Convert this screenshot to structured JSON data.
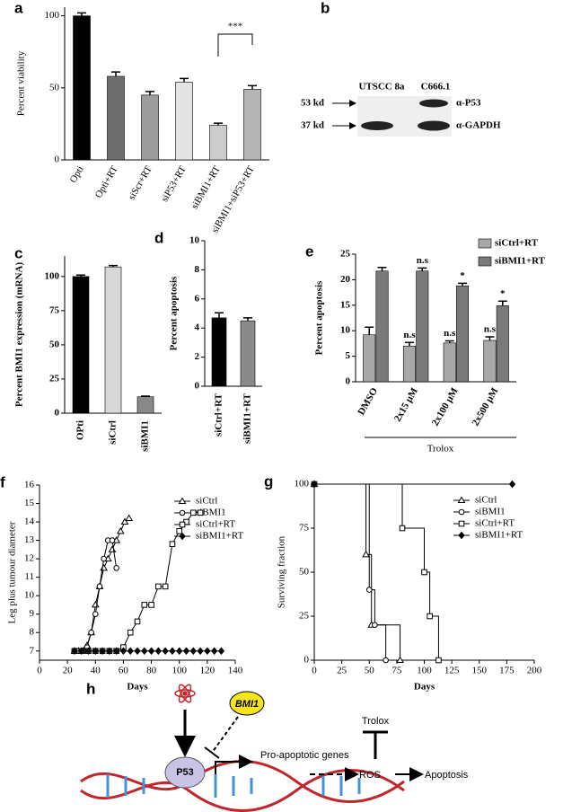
{
  "chart_data": [
    {
      "type": "bar",
      "label": "a",
      "ylabel": "Percent viability",
      "categories": [
        "Opti",
        "Opti+RT",
        "siScr+RT",
        "siP53+RT",
        "siBMI1+RT",
        "siBMI1+siP53+RT"
      ],
      "values": [
        100,
        58,
        45,
        54,
        24,
        49
      ],
      "errors": [
        2,
        3,
        2.5,
        2.5,
        1.5,
        2.5
      ],
      "colors": [
        "#000000",
        "#6e6e6e",
        "#9c9c9c",
        "#e4e4e4",
        "#cccccc",
        "#b4b4b4"
      ],
      "annotation": "***",
      "ylim": [
        0,
        106
      ],
      "yticks": [
        0,
        50,
        100
      ]
    },
    {
      "type": "bar",
      "label": "c",
      "ylabel": "Percent BMI1 expression (mRNA)",
      "categories": [
        "OPti",
        "siCtrl",
        "siBMI1"
      ],
      "values": [
        100,
        107,
        12
      ],
      "errors": [
        1,
        1,
        0.5
      ],
      "colors": [
        "#000000",
        "#d8d8d8",
        "#8a8a8a"
      ],
      "ylim": [
        0,
        115
      ],
      "yticks": [
        0,
        25,
        50,
        75,
        100
      ]
    },
    {
      "type": "bar",
      "label": "d",
      "ylabel": "Percent apoptosis",
      "categories": [
        "siCtrl+RT",
        "siBMI1+RT"
      ],
      "values": [
        4.7,
        4.5
      ],
      "errors": [
        0.35,
        0.2
      ],
      "colors": [
        "#000000",
        "#8a8a8a"
      ],
      "ylim": [
        0,
        10
      ],
      "yticks": [
        0,
        2,
        4,
        6,
        8,
        10
      ]
    },
    {
      "type": "grouped-bar",
      "label": "e",
      "ylabel": "Percent apoptosis",
      "xlabel": "Trolox",
      "categories": [
        "DMSO",
        "2x15 μM",
        "2x100 μM",
        "2x500 μM"
      ],
      "series": [
        {
          "name": "siCtrl+RT",
          "color": "#a8a8a8",
          "values": [
            9.2,
            7,
            7.6,
            8.1
          ],
          "errors": [
            1.5,
            0.7,
            0.4,
            0.7
          ],
          "annotations": [
            null,
            "n.s",
            "n.s",
            "n.s"
          ]
        },
        {
          "name": "siBMI1+RT",
          "color": "#7a7a7a",
          "values": [
            21.7,
            21.7,
            18.8,
            14.9
          ],
          "errors": [
            0.7,
            0.6,
            0.5,
            0.9
          ],
          "annotations": [
            null,
            "n.s",
            "*",
            "*"
          ]
        }
      ],
      "ylim": [
        0,
        25
      ],
      "yticks": [
        0,
        5,
        10,
        15,
        20,
        25
      ]
    },
    {
      "type": "line",
      "label": "f",
      "ylabel": "Leg plus tumour diameter",
      "xlabel": "Days",
      "series": [
        {
          "name": "siCtrl",
          "marker": "triangle",
          "x": [
            25,
            28,
            31,
            34,
            37,
            40,
            43,
            46,
            49,
            52,
            55,
            58,
            61,
            64
          ],
          "values": [
            7,
            7,
            7,
            7.3,
            8,
            9.5,
            10.5,
            11.5,
            12,
            12.5,
            13,
            13.5,
            14,
            14.2
          ]
        },
        {
          "name": "siBMI1",
          "marker": "circle",
          "x": [
            25,
            28,
            31,
            34,
            37,
            40,
            43,
            46,
            49,
            52,
            55
          ],
          "values": [
            7,
            7,
            7,
            7.2,
            8,
            9,
            10.5,
            12,
            13,
            13,
            11.5
          ]
        },
        {
          "name": "siCtrl+RT",
          "marker": "square",
          "x": [
            25,
            30,
            35,
            40,
            45,
            50,
            55,
            60,
            65,
            70,
            75,
            80,
            85,
            90,
            95,
            100,
            105,
            110,
            115
          ],
          "values": [
            7,
            7,
            7,
            7,
            7,
            7,
            7,
            7.2,
            8,
            8.6,
            9.5,
            9.5,
            10.5,
            10.5,
            12.8,
            13.5,
            14,
            14.5,
            14.5
          ]
        },
        {
          "name": "siBMI1+RT",
          "marker": "diamond",
          "x": [
            25,
            30,
            35,
            40,
            45,
            50,
            55,
            60,
            65,
            70,
            75,
            80,
            85,
            90,
            95,
            100,
            105,
            110,
            115,
            120,
            125,
            130
          ],
          "values": [
            7,
            7,
            7,
            7,
            7,
            7,
            7,
            7,
            7,
            7,
            7,
            7,
            7,
            7,
            7,
            7,
            7,
            7,
            7,
            7,
            7,
            7
          ]
        }
      ],
      "xlim": [
        0,
        140
      ],
      "xticks": [
        0,
        20,
        40,
        60,
        80,
        100,
        120,
        140
      ],
      "ylim": [
        6.5,
        16
      ],
      "yticks": [
        7,
        8,
        9,
        10,
        11,
        12,
        13,
        14,
        15,
        16
      ]
    },
    {
      "type": "step",
      "label": "g",
      "ylabel": "Surviving fraction",
      "xlabel": "Days",
      "series": [
        {
          "name": "siCtrl",
          "marker": "triangle",
          "x": [
            0,
            47,
            52,
            78
          ],
          "values": [
            100,
            60,
            20,
            0
          ]
        },
        {
          "name": "siBMI1",
          "marker": "circle",
          "x": [
            0,
            50,
            55,
            65
          ],
          "values": [
            100,
            40,
            20,
            0
          ]
        },
        {
          "name": "siCtrl+RT",
          "marker": "square",
          "x": [
            0,
            80,
            100,
            105,
            113
          ],
          "values": [
            100,
            75,
            50,
            25,
            0
          ]
        },
        {
          "name": "siBMI1+RT",
          "marker": "diamond",
          "x": [
            0,
            180
          ],
          "values": [
            100,
            100
          ]
        }
      ],
      "xlim": [
        0,
        200
      ],
      "xticks": [
        0,
        25,
        50,
        75,
        100,
        125,
        150,
        175,
        200
      ],
      "ylim": [
        0,
        100
      ],
      "yticks": [
        0,
        25,
        50,
        75,
        100
      ]
    }
  ],
  "blot": {
    "label": "b",
    "lanes": [
      "UTSCC 8a",
      "C666.1"
    ],
    "markers": [
      "53 kd",
      "37 kd"
    ],
    "antibodies": [
      "α-P53",
      "α-GAPDH"
    ]
  },
  "diagram": {
    "label": "h",
    "bmi1": "BMI1",
    "p53": "P53",
    "genes": "Pro-apoptotic genes",
    "ros": "ROS",
    "apoptosis": "Apoptosis",
    "trolox": "Trolox"
  }
}
